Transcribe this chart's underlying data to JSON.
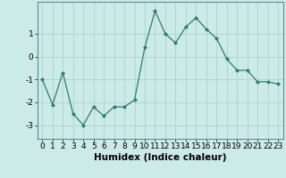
{
  "x": [
    0,
    1,
    2,
    3,
    4,
    5,
    6,
    7,
    8,
    9,
    10,
    11,
    12,
    13,
    14,
    15,
    16,
    17,
    18,
    19,
    20,
    21,
    22,
    23
  ],
  "y": [
    -1.0,
    -2.1,
    -0.7,
    -2.5,
    -3.0,
    -2.2,
    -2.6,
    -2.2,
    -2.2,
    -1.9,
    0.4,
    2.0,
    1.0,
    0.6,
    1.3,
    1.7,
    1.2,
    0.8,
    -0.1,
    -0.6,
    -0.6,
    -1.1,
    -1.1,
    -1.2
  ],
  "xlabel": "Humidex (Indice chaleur)",
  "line_color": "#2e7d6e",
  "marker": "D",
  "marker_size": 2.0,
  "bg_color": "#cceae8",
  "grid_color": "#aad4d0",
  "xlim": [
    -0.5,
    23.5
  ],
  "ylim": [
    -3.6,
    2.4
  ],
  "yticks": [
    -3,
    -2,
    -1,
    0,
    1
  ],
  "xticks": [
    0,
    1,
    2,
    3,
    4,
    5,
    6,
    7,
    8,
    9,
    10,
    11,
    12,
    13,
    14,
    15,
    16,
    17,
    18,
    19,
    20,
    21,
    22,
    23
  ],
  "xlabel_fontsize": 7.5,
  "tick_fontsize": 6.5
}
